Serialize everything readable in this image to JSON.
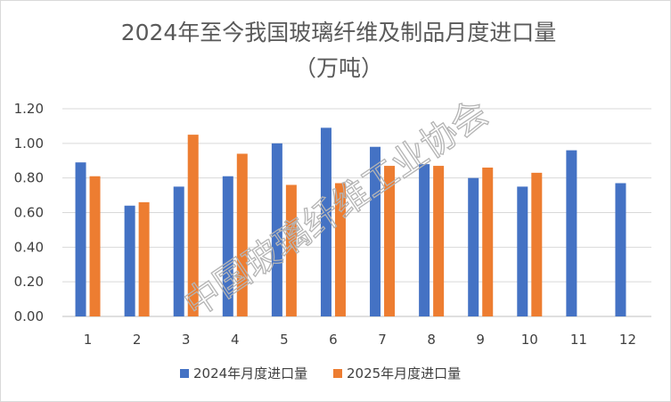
{
  "chart_data": {
    "type": "bar",
    "title": "2024年至今我国玻璃纤维及制品月度进口量",
    "subtitle": "（万吨）",
    "categories": [
      "1",
      "2",
      "3",
      "4",
      "5",
      "6",
      "7",
      "8",
      "9",
      "10",
      "11",
      "12"
    ],
    "series": [
      {
        "name": "2024年月度进口量",
        "color": "#4472c4",
        "values": [
          0.89,
          0.64,
          0.75,
          0.81,
          1.0,
          1.09,
          0.98,
          0.88,
          0.8,
          0.75,
          0.96,
          0.77
        ]
      },
      {
        "name": "2025年月度进口量",
        "color": "#ed7d31",
        "values": [
          0.81,
          0.66,
          1.05,
          0.94,
          0.76,
          0.77,
          0.87,
          0.87,
          0.86,
          0.83,
          null,
          null
        ]
      }
    ],
    "yticks": [
      "0.00",
      "0.20",
      "0.40",
      "0.60",
      "0.80",
      "1.00",
      "1.20"
    ],
    "ylim": [
      0,
      1.2
    ],
    "grid": true,
    "legend_position": "bottom",
    "watermark": "中国玻璃纤维工业协会"
  }
}
